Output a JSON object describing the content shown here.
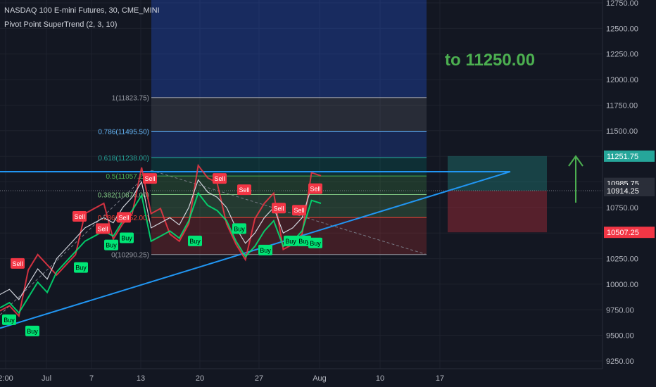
{
  "header": {
    "symbol": "NASDAQ 100 E-mini Futures, 30, CME_MINI",
    "indicator": "Pivot Point SuperTrend (2, 3, 10)"
  },
  "annotation": {
    "text": "to 11250.00",
    "color": "#4caf50"
  },
  "colors": {
    "background": "#131722",
    "axis_text": "#b2b5be",
    "grid": "#1e222d",
    "sell": "#f23645",
    "buy": "#00e676",
    "trendline": "#2196f3"
  },
  "chart_data": {
    "type": "line",
    "title": "",
    "ylim": [
      9250,
      12750
    ],
    "y_ticks": [
      9250,
      9500,
      9750,
      10000,
      10250,
      10500,
      10750,
      11000,
      11250,
      11500,
      11750,
      12000,
      12250,
      12500,
      12750
    ],
    "y_tick_labels": [
      "9250.00",
      "9500.00",
      "9750.00",
      "10000.00",
      "10250.00",
      "10500.00",
      "10750.00",
      "11000.00",
      "11250.00",
      "11500.00",
      "11750.00",
      "12000.00",
      "12250.00",
      "12500.00",
      "12750.00"
    ],
    "x_labels": [
      "2:00",
      "Jul",
      "7",
      "13",
      "20",
      "27",
      "Aug",
      "10",
      "17"
    ],
    "fib_levels": [
      {
        "label": "1(11823.75)",
        "value": 11823.75,
        "color": "#9598a1"
      },
      {
        "label": "0.786(11495.50)",
        "value": 11495.5,
        "color": "#64b5f6"
      },
      {
        "label": "0.618(11238.00)",
        "value": 11238.0,
        "color": "#26a69a"
      },
      {
        "label": "0.5(11057.25)",
        "value": 11057.25,
        "color": "#4caf50"
      },
      {
        "label": "0.382(10876.00)",
        "value": 10876.0,
        "color": "#81c784"
      },
      {
        "label": "0.236(10652.00)",
        "value": 10652.0,
        "color": "#f44336"
      },
      {
        "label": "0(10290.25)",
        "value": 10290.25,
        "color": "#9598a1"
      }
    ],
    "price_badges": [
      {
        "label": "11251.75",
        "value": 11251.75,
        "color": "#26a69a"
      },
      {
        "label": "10985.75",
        "value": 10985.75,
        "color": "#2a2e39"
      },
      {
        "label": "10914.25",
        "value": 10914.25,
        "color": "#2a2e39"
      },
      {
        "label": "10507.25",
        "value": 10507.25,
        "color": "#f23645"
      }
    ],
    "position": {
      "entry": 10914.25,
      "target": 11251.75,
      "stop": 10507.25
    },
    "signals": [
      {
        "type": "Buy",
        "price": 9650
      },
      {
        "type": "Buy",
        "price": 9540
      },
      {
        "type": "Sell",
        "price": 10200
      },
      {
        "type": "Buy",
        "price": 10160
      },
      {
        "type": "Sell",
        "price": 10540
      },
      {
        "type": "Sell",
        "price": 10650
      },
      {
        "type": "Buy",
        "price": 10380
      },
      {
        "type": "Sell",
        "price": 10660
      },
      {
        "type": "Buy",
        "price": 10450
      },
      {
        "type": "Sell",
        "price": 11030
      },
      {
        "type": "Sell",
        "price": 11030
      },
      {
        "type": "Buy",
        "price": 10420
      },
      {
        "type": "Sell",
        "price": 10920
      },
      {
        "type": "Buy",
        "price": 10540
      },
      {
        "type": "Buy",
        "price": 10330
      },
      {
        "type": "Sell",
        "price": 10740
      },
      {
        "type": "Buy",
        "price": 10420
      },
      {
        "type": "Sell",
        "price": 10720
      },
      {
        "type": "Buy",
        "price": 10420
      },
      {
        "type": "Buy",
        "price": 10400
      },
      {
        "type": "Sell",
        "price": 10930
      }
    ],
    "price_path": [
      9900,
      9950,
      9850,
      10000,
      10150,
      10050,
      10250,
      10350,
      10450,
      10550,
      10600,
      10650,
      10600,
      10750,
      10850,
      11000,
      10550,
      10600,
      10650,
      10580,
      10750,
      11020,
      10900,
      10850,
      10750,
      10550,
      10400,
      10500,
      10650,
      10750,
      10500,
      10550,
      10650,
      10950,
      10920
    ]
  }
}
